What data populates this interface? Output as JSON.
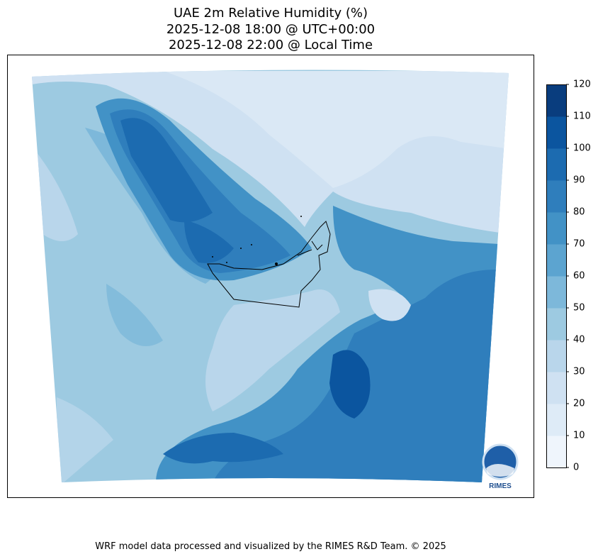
{
  "title": {
    "line1": "UAE 2m Relative Humidity (%)",
    "line2": "2025-12-08 18:00 @ UTC+00:00",
    "line3": "2025-12-08 22:00 @ Local Time"
  },
  "colorbar": {
    "ticks": [
      "0",
      "10",
      "20",
      "30",
      "40",
      "50",
      "60",
      "70",
      "80",
      "90",
      "100",
      "110",
      "120"
    ],
    "levels": [
      0,
      10,
      20,
      30,
      40,
      50,
      60,
      70,
      80,
      90,
      100,
      110,
      120
    ],
    "colors": [
      "#eff5fc",
      "#deebf7",
      "#cfe1f2",
      "#b9d6eb",
      "#9dcae1",
      "#7db8da",
      "#5ca4d0",
      "#4292c6",
      "#2f7ebc",
      "#1c6bb0",
      "#0b559f",
      "#093d7e"
    ]
  },
  "logo": {
    "text": "RIMES"
  },
  "footer": "WRF model data processed and visualized by the RIMES R&D Team. © 2025"
}
